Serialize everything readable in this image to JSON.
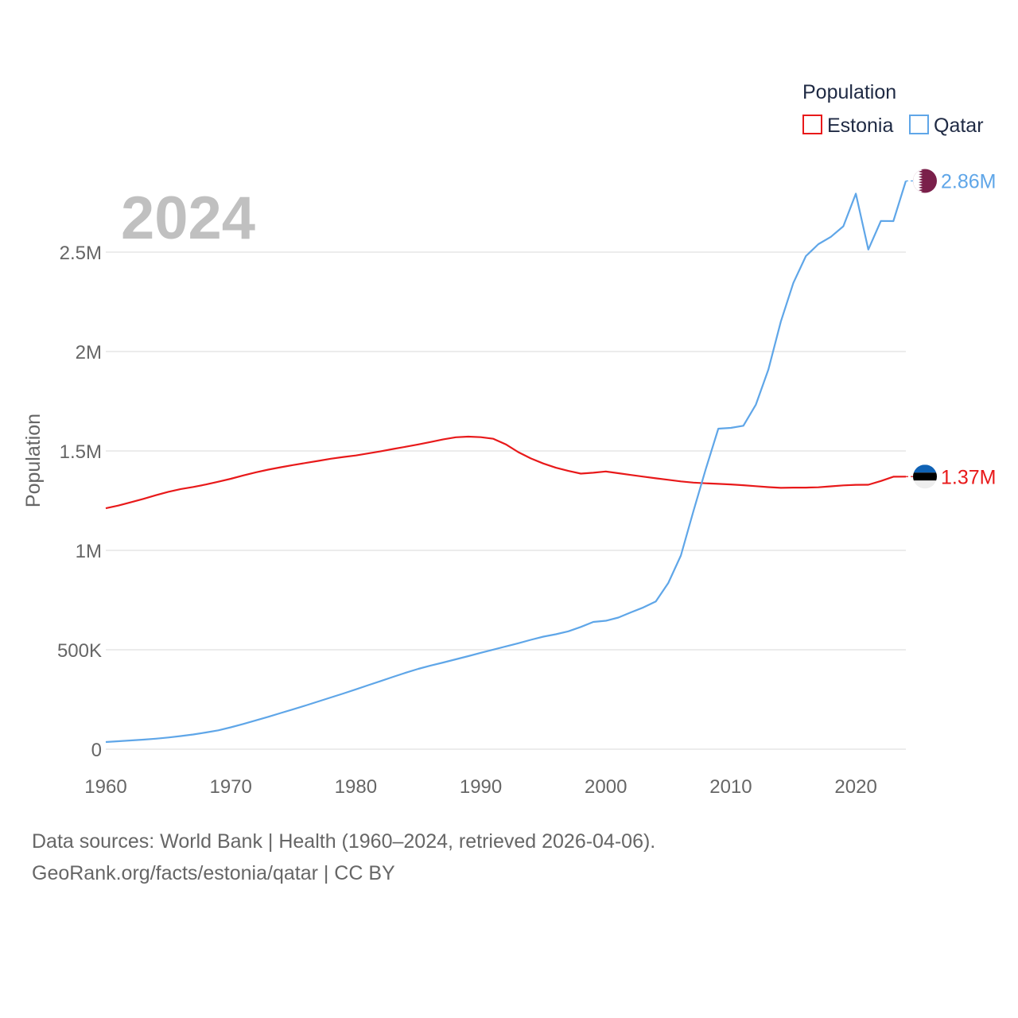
{
  "chart_data": {
    "type": "line",
    "title": "Population",
    "year_label": "2024",
    "xlabel": "",
    "ylabel": "Population",
    "xlim": [
      1960,
      2024
    ],
    "ylim": [
      0,
      2900000
    ],
    "x_ticks": [
      1960,
      1970,
      1980,
      1990,
      2000,
      2010,
      2020
    ],
    "x_tick_labels": [
      "1960",
      "1970",
      "1980",
      "1990",
      "2000",
      "2010",
      "2020"
    ],
    "y_ticks": [
      0,
      500000,
      1000000,
      1500000,
      2000000,
      2500000
    ],
    "y_tick_labels": [
      "0",
      "500K",
      "1M",
      "1.5M",
      "2M",
      "2.5M"
    ],
    "grid": true,
    "legend_position": "top-right",
    "x": [
      1960,
      1961,
      1962,
      1963,
      1964,
      1965,
      1966,
      1967,
      1968,
      1969,
      1970,
      1971,
      1972,
      1973,
      1974,
      1975,
      1976,
      1977,
      1978,
      1979,
      1980,
      1981,
      1982,
      1983,
      1984,
      1985,
      1986,
      1987,
      1988,
      1989,
      1990,
      1991,
      1992,
      1993,
      1994,
      1995,
      1996,
      1997,
      1998,
      1999,
      2000,
      2001,
      2002,
      2003,
      2004,
      2005,
      2006,
      2007,
      2008,
      2009,
      2010,
      2011,
      2012,
      2013,
      2014,
      2015,
      2016,
      2017,
      2018,
      2019,
      2020,
      2021,
      2022,
      2023,
      2024
    ],
    "series": [
      {
        "name": "Estonia",
        "color": "#e8191a",
        "end_label": "1.37M",
        "flag": "estonia-flag",
        "values": [
          1211537,
          1225077,
          1241623,
          1258857,
          1277086,
          1294566,
          1308597,
          1318946,
          1331214,
          1345249,
          1360076,
          1376955,
          1392518,
          1405951,
          1418101,
          1429008,
          1439700,
          1450150,
          1460900,
          1469760,
          1477219,
          1487666,
          1498414,
          1510140,
          1521199,
          1532769,
          1545342,
          1558387,
          1568631,
          1571930,
          1569174,
          1561314,
          1533091,
          1494128,
          1462514,
          1436634,
          1415594,
          1399535,
          1386156,
          1390244,
          1396985,
          1388115,
          1379350,
          1370720,
          1362550,
          1354775,
          1346810,
          1340680,
          1337090,
          1334515,
          1331475,
          1327439,
          1322696,
          1317997,
          1314545,
          1315407,
          1315790,
          1317384,
          1321977,
          1326898,
          1329522,
          1330068,
          1348840,
          1370286,
          1371000
        ]
      },
      {
        "name": "Qatar",
        "color": "#5fa6e8",
        "end_label": "2.86M",
        "flag": "qatar-flag",
        "values": [
          36000,
          40000,
          44000,
          48000,
          53000,
          59000,
          66000,
          74000,
          84000,
          95000,
          110000,
          127000,
          145000,
          163000,
          182000,
          201000,
          220000,
          240000,
          260000,
          280000,
          301000,
          322000,
          343000,
          364000,
          385000,
          404000,
          421000,
          436000,
          452000,
          468000,
          485000,
          501000,
          517000,
          533000,
          550000,
          566000,
          578000,
          593000,
          615000,
          640000,
          646000,
          662000,
          688000,
          713000,
          743000,
          836000,
          974000,
          1196000,
          1410000,
          1612000,
          1616000,
          1627000,
          1733000,
          1909000,
          2151000,
          2345000,
          2480000,
          2540000,
          2577000,
          2630000,
          2794000,
          2513000,
          2657000,
          2656000,
          2858000
        ]
      }
    ]
  },
  "footer": {
    "line1": "Data sources: World Bank | Health (1960–2024, retrieved 2026-04-06).",
    "line2": "GeoRank.org/facts/estonia/qatar | CC BY"
  }
}
